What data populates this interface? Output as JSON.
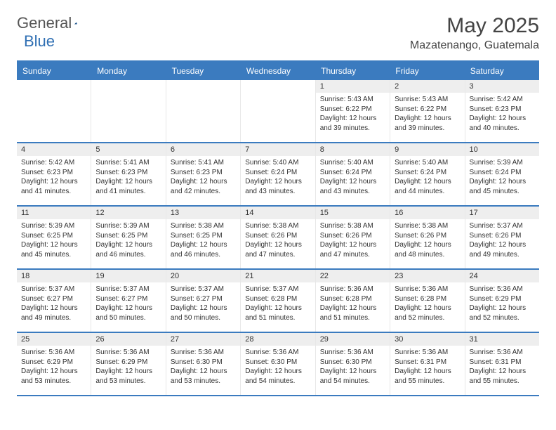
{
  "logo": {
    "text1": "General",
    "text2": "Blue",
    "color1": "#777777",
    "color2": "#2f6fb3"
  },
  "title": "May 2025",
  "location": "Mazatenango, Guatemala",
  "colors": {
    "header_bg": "#3b7bbf",
    "grid_border": "#3b7bbf",
    "daynum_bg": "#eeeeee"
  },
  "dow": [
    "Sunday",
    "Monday",
    "Tuesday",
    "Wednesday",
    "Thursday",
    "Friday",
    "Saturday"
  ],
  "weeks": [
    [
      {
        "empty": true
      },
      {
        "empty": true
      },
      {
        "empty": true
      },
      {
        "empty": true
      },
      {
        "n": "1",
        "sr": "Sunrise: 5:43 AM",
        "ss": "Sunset: 6:22 PM",
        "dl": "Daylight: 12 hours and 39 minutes."
      },
      {
        "n": "2",
        "sr": "Sunrise: 5:43 AM",
        "ss": "Sunset: 6:22 PM",
        "dl": "Daylight: 12 hours and 39 minutes."
      },
      {
        "n": "3",
        "sr": "Sunrise: 5:42 AM",
        "ss": "Sunset: 6:23 PM",
        "dl": "Daylight: 12 hours and 40 minutes."
      }
    ],
    [
      {
        "n": "4",
        "sr": "Sunrise: 5:42 AM",
        "ss": "Sunset: 6:23 PM",
        "dl": "Daylight: 12 hours and 41 minutes."
      },
      {
        "n": "5",
        "sr": "Sunrise: 5:41 AM",
        "ss": "Sunset: 6:23 PM",
        "dl": "Daylight: 12 hours and 41 minutes."
      },
      {
        "n": "6",
        "sr": "Sunrise: 5:41 AM",
        "ss": "Sunset: 6:23 PM",
        "dl": "Daylight: 12 hours and 42 minutes."
      },
      {
        "n": "7",
        "sr": "Sunrise: 5:40 AM",
        "ss": "Sunset: 6:24 PM",
        "dl": "Daylight: 12 hours and 43 minutes."
      },
      {
        "n": "8",
        "sr": "Sunrise: 5:40 AM",
        "ss": "Sunset: 6:24 PM",
        "dl": "Daylight: 12 hours and 43 minutes."
      },
      {
        "n": "9",
        "sr": "Sunrise: 5:40 AM",
        "ss": "Sunset: 6:24 PM",
        "dl": "Daylight: 12 hours and 44 minutes."
      },
      {
        "n": "10",
        "sr": "Sunrise: 5:39 AM",
        "ss": "Sunset: 6:24 PM",
        "dl": "Daylight: 12 hours and 45 minutes."
      }
    ],
    [
      {
        "n": "11",
        "sr": "Sunrise: 5:39 AM",
        "ss": "Sunset: 6:25 PM",
        "dl": "Daylight: 12 hours and 45 minutes."
      },
      {
        "n": "12",
        "sr": "Sunrise: 5:39 AM",
        "ss": "Sunset: 6:25 PM",
        "dl": "Daylight: 12 hours and 46 minutes."
      },
      {
        "n": "13",
        "sr": "Sunrise: 5:38 AM",
        "ss": "Sunset: 6:25 PM",
        "dl": "Daylight: 12 hours and 46 minutes."
      },
      {
        "n": "14",
        "sr": "Sunrise: 5:38 AM",
        "ss": "Sunset: 6:26 PM",
        "dl": "Daylight: 12 hours and 47 minutes."
      },
      {
        "n": "15",
        "sr": "Sunrise: 5:38 AM",
        "ss": "Sunset: 6:26 PM",
        "dl": "Daylight: 12 hours and 47 minutes."
      },
      {
        "n": "16",
        "sr": "Sunrise: 5:38 AM",
        "ss": "Sunset: 6:26 PM",
        "dl": "Daylight: 12 hours and 48 minutes."
      },
      {
        "n": "17",
        "sr": "Sunrise: 5:37 AM",
        "ss": "Sunset: 6:26 PM",
        "dl": "Daylight: 12 hours and 49 minutes."
      }
    ],
    [
      {
        "n": "18",
        "sr": "Sunrise: 5:37 AM",
        "ss": "Sunset: 6:27 PM",
        "dl": "Daylight: 12 hours and 49 minutes."
      },
      {
        "n": "19",
        "sr": "Sunrise: 5:37 AM",
        "ss": "Sunset: 6:27 PM",
        "dl": "Daylight: 12 hours and 50 minutes."
      },
      {
        "n": "20",
        "sr": "Sunrise: 5:37 AM",
        "ss": "Sunset: 6:27 PM",
        "dl": "Daylight: 12 hours and 50 minutes."
      },
      {
        "n": "21",
        "sr": "Sunrise: 5:37 AM",
        "ss": "Sunset: 6:28 PM",
        "dl": "Daylight: 12 hours and 51 minutes."
      },
      {
        "n": "22",
        "sr": "Sunrise: 5:36 AM",
        "ss": "Sunset: 6:28 PM",
        "dl": "Daylight: 12 hours and 51 minutes."
      },
      {
        "n": "23",
        "sr": "Sunrise: 5:36 AM",
        "ss": "Sunset: 6:28 PM",
        "dl": "Daylight: 12 hours and 52 minutes."
      },
      {
        "n": "24",
        "sr": "Sunrise: 5:36 AM",
        "ss": "Sunset: 6:29 PM",
        "dl": "Daylight: 12 hours and 52 minutes."
      }
    ],
    [
      {
        "n": "25",
        "sr": "Sunrise: 5:36 AM",
        "ss": "Sunset: 6:29 PM",
        "dl": "Daylight: 12 hours and 53 minutes."
      },
      {
        "n": "26",
        "sr": "Sunrise: 5:36 AM",
        "ss": "Sunset: 6:29 PM",
        "dl": "Daylight: 12 hours and 53 minutes."
      },
      {
        "n": "27",
        "sr": "Sunrise: 5:36 AM",
        "ss": "Sunset: 6:30 PM",
        "dl": "Daylight: 12 hours and 53 minutes."
      },
      {
        "n": "28",
        "sr": "Sunrise: 5:36 AM",
        "ss": "Sunset: 6:30 PM",
        "dl": "Daylight: 12 hours and 54 minutes."
      },
      {
        "n": "29",
        "sr": "Sunrise: 5:36 AM",
        "ss": "Sunset: 6:30 PM",
        "dl": "Daylight: 12 hours and 54 minutes."
      },
      {
        "n": "30",
        "sr": "Sunrise: 5:36 AM",
        "ss": "Sunset: 6:31 PM",
        "dl": "Daylight: 12 hours and 55 minutes."
      },
      {
        "n": "31",
        "sr": "Sunrise: 5:36 AM",
        "ss": "Sunset: 6:31 PM",
        "dl": "Daylight: 12 hours and 55 minutes."
      }
    ]
  ]
}
